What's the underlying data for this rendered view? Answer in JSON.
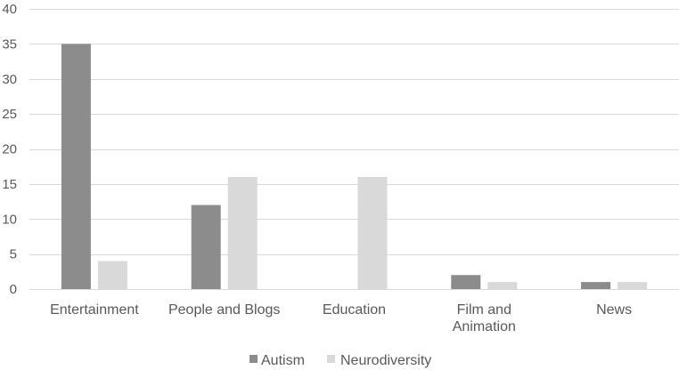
{
  "chart_data": {
    "type": "bar",
    "categories": [
      [
        "Entertainment"
      ],
      [
        "People and Blogs"
      ],
      [
        "Education"
      ],
      [
        "Film and",
        "Animation"
      ],
      [
        "News"
      ]
    ],
    "series": [
      {
        "name": "Autism",
        "values": [
          35,
          12,
          0,
          2,
          1
        ],
        "color": "#8c8c8c"
      },
      {
        "name": "Neurodiversity",
        "values": [
          4,
          16,
          16,
          1,
          1
        ],
        "color": "#d9d9d9"
      }
    ],
    "ylim": [
      0,
      40
    ],
    "yticks": [
      "0",
      "5",
      "10",
      "15",
      "20",
      "25",
      "30",
      "35",
      "40"
    ],
    "grid": true,
    "legend": "bottom-center"
  }
}
